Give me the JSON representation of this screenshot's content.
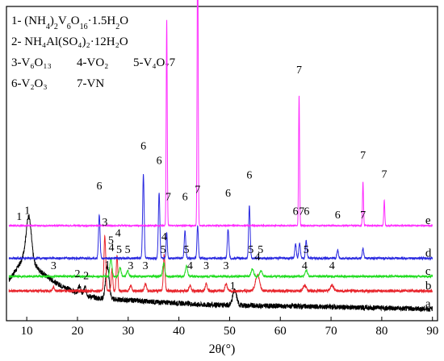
{
  "chart_data": {
    "type": "line",
    "title": "",
    "xlabel": "2θ(°)",
    "ylabel": "",
    "xlim": [
      6,
      91
    ],
    "x_ticks": [
      10,
      20,
      30,
      40,
      50,
      60,
      70,
      80,
      90
    ],
    "grid": false,
    "legend": [
      {
        "num": "1-",
        "base": " (NH",
        "s1": "4",
        "mid": ")",
        "s2": "2",
        "tail": "V",
        "s3": "6",
        "tail2": "O",
        "s4": "16",
        "tail3": "·1.5H",
        "s5": "2",
        "tail4": "O"
      },
      {
        "text": "2- NH₄Al(SO₄)₂·12H₂O"
      },
      {
        "text": "3-V₆O₁₃"
      },
      {
        "text": "4-VO₂"
      },
      {
        "text": "5-V₄O₇7"
      },
      {
        "text": "6-V₂O₃"
      },
      {
        "text": "7-VN"
      }
    ],
    "legend_placement": "top-left",
    "series": [
      {
        "name": "a",
        "color": "#000000",
        "baseline_level": 0.05,
        "background": [
          [
            6,
            0.35
          ],
          [
            8,
            0.55
          ],
          [
            9.5,
            0.72
          ],
          [
            11,
            0.65
          ],
          [
            13,
            0.5
          ],
          [
            16,
            0.35
          ],
          [
            20,
            0.22
          ],
          [
            24,
            0.15
          ],
          [
            28,
            0.13
          ],
          [
            35,
            0.1
          ],
          [
            45,
            0.06
          ],
          [
            60,
            0.04
          ],
          [
            70,
            0.03
          ],
          [
            90,
            0.0
          ]
        ],
        "peaks": [
          {
            "x": 10.4,
            "h": 0.6,
            "w": 0.5
          },
          {
            "x": 20.4,
            "h": 0.1,
            "w": 0.25
          },
          {
            "x": 21.5,
            "h": 0.1,
            "w": 0.25
          },
          {
            "x": 25.9,
            "h": 0.45,
            "w": 0.35
          },
          {
            "x": 51.0,
            "h": 0.2,
            "w": 0.4
          }
        ],
        "noise": 0.035,
        "labels": [
          {
            "text": "1",
            "x": 8.5,
            "dy": 0.62
          },
          {
            "text": "1",
            "x": 10.1,
            "dy": 0.62
          },
          {
            "text": "2",
            "x": 20.0,
            "dy": 0.22
          },
          {
            "text": "2",
            "x": 21.7,
            "dy": 0.22
          },
          {
            "text": "1",
            "x": 25.9,
            "dy": 0.42
          },
          {
            "text": "1",
            "x": 50.6,
            "dy": 0.22
          }
        ],
        "curve_label": "a"
      },
      {
        "name": "b",
        "color": "#e8242b",
        "baseline_level": 0.3,
        "background": [
          [
            6,
            0.0
          ],
          [
            90,
            0.0
          ]
        ],
        "peaks": [
          {
            "x": 15.3,
            "h": 0.05,
            "w": 0.2
          },
          {
            "x": 25.4,
            "h": 0.75,
            "w": 0.18
          },
          {
            "x": 26.8,
            "h": 0.3,
            "w": 0.15
          },
          {
            "x": 27.8,
            "h": 0.5,
            "w": 0.15
          },
          {
            "x": 30.5,
            "h": 0.07,
            "w": 0.2
          },
          {
            "x": 33.4,
            "h": 0.1,
            "w": 0.2
          },
          {
            "x": 37.1,
            "h": 0.5,
            "w": 0.16
          },
          {
            "x": 42.2,
            "h": 0.08,
            "w": 0.2
          },
          {
            "x": 45.4,
            "h": 0.1,
            "w": 0.2
          },
          {
            "x": 49.3,
            "h": 0.1,
            "w": 0.2
          },
          {
            "x": 55.5,
            "h": 0.22,
            "w": 0.4
          },
          {
            "x": 64.8,
            "h": 0.08,
            "w": 0.3
          },
          {
            "x": 70.2,
            "h": 0.08,
            "w": 0.3
          }
        ],
        "noise": 0.02,
        "labels": [
          {
            "text": "3",
            "x": 15.3,
            "dy": 0.3
          },
          {
            "text": "3",
            "x": 25.4,
            "dy": 0.9
          },
          {
            "text": "4",
            "x": 26.7,
            "dy": 0.55
          },
          {
            "text": "4",
            "x": 28.0,
            "dy": 0.75
          },
          {
            "text": "3",
            "x": 30.5,
            "dy": 0.3
          },
          {
            "text": "3",
            "x": 33.4,
            "dy": 0.3
          },
          {
            "text": "4",
            "x": 37.1,
            "dy": 0.7
          },
          {
            "text": "4",
            "x": 42.2,
            "dy": 0.3
          },
          {
            "text": "3",
            "x": 45.4,
            "dy": 0.3
          },
          {
            "text": "3",
            "x": 49.3,
            "dy": 0.3
          },
          {
            "text": "4",
            "x": 55.5,
            "dy": 0.42
          },
          {
            "text": "4",
            "x": 64.8,
            "dy": 0.3
          },
          {
            "text": "4",
            "x": 70.2,
            "dy": 0.3
          }
        ],
        "curve_label": "b"
      },
      {
        "name": "c",
        "color": "#22dd22",
        "baseline_level": 0.5,
        "background": [
          [
            6,
            0.0
          ],
          [
            90,
            0.0
          ]
        ],
        "peaks": [
          {
            "x": 26.6,
            "h": 0.25,
            "w": 0.2
          },
          {
            "x": 28.4,
            "h": 0.12,
            "w": 0.2
          },
          {
            "x": 29.9,
            "h": 0.08,
            "w": 0.2
          },
          {
            "x": 37.0,
            "h": 0.18,
            "w": 0.2
          },
          {
            "x": 41.5,
            "h": 0.14,
            "w": 0.2
          },
          {
            "x": 54.5,
            "h": 0.1,
            "w": 0.25
          },
          {
            "x": 56.2,
            "h": 0.08,
            "w": 0.25
          },
          {
            "x": 65.1,
            "h": 0.08,
            "w": 0.25
          }
        ],
        "noise": 0.015,
        "labels": [
          {
            "text": "5",
            "x": 26.6,
            "dy": 0.45
          },
          {
            "text": "5",
            "x": 28.2,
            "dy": 0.32
          },
          {
            "text": "5",
            "x": 29.9,
            "dy": 0.32
          },
          {
            "text": "5",
            "x": 36.9,
            "dy": 0.32
          },
          {
            "text": "5",
            "x": 41.5,
            "dy": 0.32
          },
          {
            "text": "5",
            "x": 54.2,
            "dy": 0.32
          },
          {
            "text": "5",
            "x": 56.1,
            "dy": 0.32
          },
          {
            "text": "5",
            "x": 65.1,
            "dy": 0.32
          }
        ],
        "curve_label": "c"
      },
      {
        "name": "d",
        "color": "#2a2ae0",
        "baseline_level": 0.75,
        "background": [
          [
            6,
            0.0
          ],
          [
            90,
            0.0
          ]
        ],
        "peaks": [
          {
            "x": 24.3,
            "h": 0.6,
            "w": 0.15
          },
          {
            "x": 33.0,
            "h": 1.15,
            "w": 0.15
          },
          {
            "x": 36.1,
            "h": 0.9,
            "w": 0.15
          },
          {
            "x": 37.6,
            "h": 0.35,
            "w": 0.12
          },
          {
            "x": 41.2,
            "h": 0.38,
            "w": 0.15
          },
          {
            "x": 43.7,
            "h": 0.45,
            "w": 0.14
          },
          {
            "x": 49.7,
            "h": 0.4,
            "w": 0.15
          },
          {
            "x": 53.9,
            "h": 0.72,
            "w": 0.15
          },
          {
            "x": 63.0,
            "h": 0.2,
            "w": 0.15
          },
          {
            "x": 63.8,
            "h": 0.22,
            "w": 0.15
          },
          {
            "x": 65.1,
            "h": 0.24,
            "w": 0.15
          },
          {
            "x": 71.3,
            "h": 0.12,
            "w": 0.15
          },
          {
            "x": 76.3,
            "h": 0.13,
            "w": 0.15
          }
        ],
        "noise": 0.015,
        "labels": [
          {
            "text": "6",
            "x": 24.3,
            "dy": 0.95
          },
          {
            "text": "6",
            "x": 33.0,
            "dy": 1.5
          },
          {
            "text": "6",
            "x": 36.1,
            "dy": 1.3
          },
          {
            "text": "7",
            "x": 37.9,
            "dy": 0.8
          },
          {
            "text": "6",
            "x": 41.2,
            "dy": 0.8
          },
          {
            "text": "7",
            "x": 43.7,
            "dy": 0.9
          },
          {
            "text": "6",
            "x": 49.7,
            "dy": 0.85
          },
          {
            "text": "6",
            "x": 53.9,
            "dy": 1.1
          },
          {
            "text": "6",
            "x": 63.0,
            "dy": 0.6
          },
          {
            "text": "7",
            "x": 64.2,
            "dy": 0.6
          },
          {
            "text": "6",
            "x": 65.2,
            "dy": 0.6
          },
          {
            "text": "6",
            "x": 71.3,
            "dy": 0.55
          },
          {
            "text": "7",
            "x": 76.3,
            "dy": 0.55
          }
        ],
        "curve_label": "d"
      },
      {
        "name": "e",
        "color": "#ff2bff",
        "baseline_level": 1.2,
        "background": [
          [
            6,
            0.0
          ],
          [
            90,
            0.0
          ]
        ],
        "peaks": [
          {
            "x": 37.6,
            "h": 2.85,
            "w": 0.1
          },
          {
            "x": 43.7,
            "h": 4.2,
            "w": 0.1
          },
          {
            "x": 63.7,
            "h": 1.8,
            "w": 0.1
          },
          {
            "x": 76.3,
            "h": 0.6,
            "w": 0.1
          },
          {
            "x": 80.5,
            "h": 0.35,
            "w": 0.1
          }
        ],
        "noise": 0.008,
        "labels": [
          {
            "text": "7",
            "x": 43.7,
            "dy": 4.5
          },
          {
            "text": "7",
            "x": 63.7,
            "dy": 2.1
          },
          {
            "text": "7",
            "x": 76.3,
            "dy": 0.92
          },
          {
            "text": "7",
            "x": 80.5,
            "dy": 0.66
          }
        ],
        "curve_label": "e"
      }
    ]
  }
}
